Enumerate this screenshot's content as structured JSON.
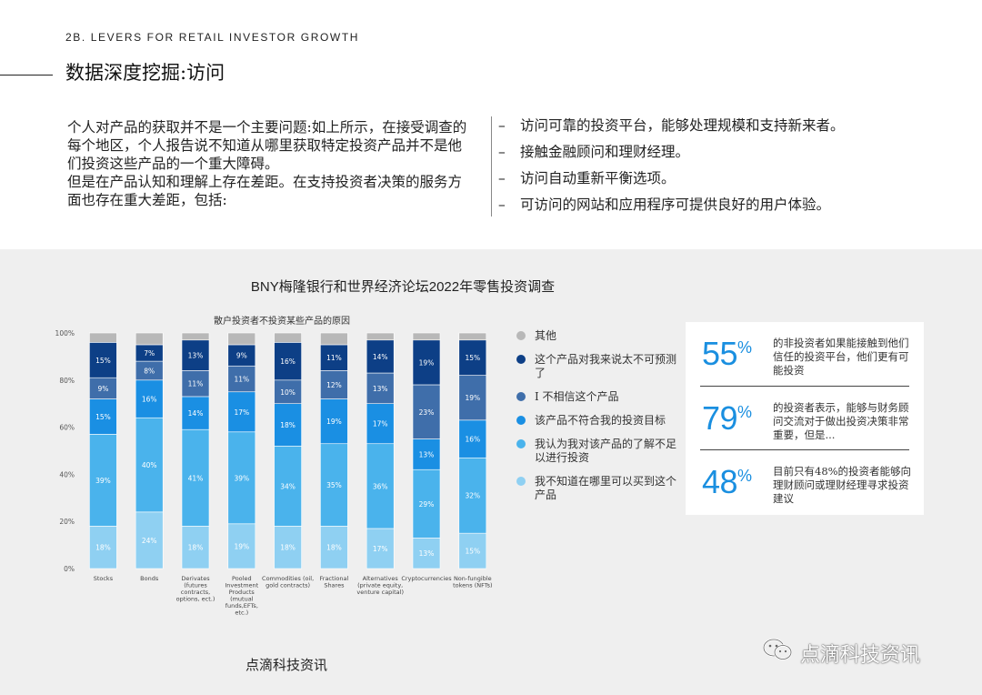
{
  "header": {
    "section_label": "2B. LEVERS FOR RETAIL INVESTOR GROWTH",
    "title": "数据深度挖掘:访问"
  },
  "intro": {
    "paragraph1": "个人对产品的获取并不是一个主要问题:如上所示，在接受调查的每个地区，个人报告说不知道从哪里获取特定投资产品并不是他们投资这些产品的一个重大障碍。",
    "paragraph2": "但是在产品认知和理解上存在差距。在支持投资者决策的服务方面也存在重大差距，包括:"
  },
  "bullets": {
    "dash": "–",
    "items": [
      "访问可靠的投资平台，能够处理规模和支持新来者。",
      "接触金融顾问和理财经理。",
      "访问自动重新平衡选项。",
      "可访问的网站和应用程序可提供良好的用户体验。"
    ]
  },
  "chart_data": {
    "type": "bar",
    "stacked": true,
    "title": "BNY梅隆银行和世界经济论坛2022年零售投资调查",
    "subtitle": "散户投资者不投资某些产品的原因",
    "y_ticks": [
      "0%",
      "20%",
      "40%",
      "60%",
      "80%",
      "100%"
    ],
    "ylim": [
      0,
      100
    ],
    "grid": false,
    "legend_position": "right",
    "categories": [
      "Stocks",
      "Bonds",
      "Derivates (futures contracts, options, ect.)",
      "Pooled Investment Products (mutual funds,EFTs, etc.)",
      "Commodities (oil, gold contracts)",
      "Fractional Shares",
      "Alternatives (private equity, venture capital)",
      "Cryptocurrencies",
      "Non-fungible tokens (NFTs)"
    ],
    "category_lines": [
      [
        "Stocks"
      ],
      [
        "Bonds"
      ],
      [
        "Derivates",
        "(futures",
        "contracts,",
        "options, ect.)"
      ],
      [
        "Pooled",
        "Investment",
        "Products",
        "(mutual",
        "funds,EFTs,",
        "etc.)"
      ],
      [
        "Commodities (oil,",
        "gold contracts)"
      ],
      [
        "Fractional",
        "Shares"
      ],
      [
        "Alternatives",
        "(private equity,",
        "venture capital)"
      ],
      [
        "Cryptocurrencies"
      ],
      [
        "Non-fungible",
        "tokens (NFTs)"
      ]
    ],
    "series": [
      {
        "name": "我不知道在哪里可以买到这个产品",
        "color": "#8fd0f2",
        "values": [
          18,
          24,
          18,
          19,
          18,
          18,
          17,
          13,
          15
        ],
        "labels": [
          "18%",
          "24%",
          "18%",
          "19%",
          "18%",
          "18%",
          "17%",
          "13%",
          "15%"
        ]
      },
      {
        "name": "我认为我对该产品的了解不足以进行投资",
        "color": "#4ab3ec",
        "values": [
          39,
          40,
          41,
          39,
          34,
          35,
          36,
          29,
          32
        ],
        "labels": [
          "39%",
          "40%",
          "41%",
          "39%",
          "34%",
          "35%",
          "36%",
          "29%",
          "32%"
        ]
      },
      {
        "name": "该产品不符合我的投资目标",
        "color": "#1a8fe3",
        "values": [
          15,
          16,
          14,
          17,
          18,
          19,
          17,
          13,
          16
        ],
        "labels": [
          "15%",
          "16%",
          "14%",
          "17%",
          "18%",
          "19%",
          "17%",
          "13%",
          "16%"
        ]
      },
      {
        "name": "I 不相信这个产品",
        "color": "#3f6eaa",
        "values": [
          9,
          8,
          11,
          11,
          10,
          12,
          13,
          23,
          19
        ],
        "labels": [
          "9%",
          "8%",
          "11%",
          "11%",
          "10%",
          "12%",
          "13%",
          "23%",
          "19%"
        ]
      },
      {
        "name": "这个产品对我来说太不可预测了",
        "color": "#0d3f86",
        "values": [
          15,
          7,
          13,
          9,
          16,
          11,
          14,
          19,
          15
        ],
        "labels": [
          "15%",
          "7%",
          "13%",
          "9%",
          "16%",
          "11%",
          "14%",
          "19%",
          "15%"
        ]
      },
      {
        "name": "其他",
        "color": "#b8b8b8",
        "values": [
          4,
          5,
          3,
          5,
          4,
          5,
          3,
          3,
          3
        ],
        "labels": [
          "",
          "",
          "",
          "",
          "",
          "",
          "",
          "",
          ""
        ]
      }
    ]
  },
  "legend": [
    {
      "label": "其他",
      "color": "#b8b8b8"
    },
    {
      "label": "这个产品对我来说太不可预测了",
      "color": "#0d3f86"
    },
    {
      "label": "I 不相信这个产品",
      "color": "#3f6eaa"
    },
    {
      "label": "该产品不符合我的投资目标",
      "color": "#1a8fe3"
    },
    {
      "label": "我认为我对该产品的了解不足以进行投资",
      "color": "#4ab3ec"
    },
    {
      "label": "我不知道在哪里可以买到这个产品",
      "color": "#8fd0f2"
    }
  ],
  "stats": [
    {
      "number": "55",
      "unit": "%",
      "text": "的非投资者如果能接触到他们信任的投资平台，他们更有可能投资"
    },
    {
      "number": "79",
      "unit": "%",
      "text": "的投资者表示，能够与财务顾问交流对于做出投资决策非常重要，但是..."
    },
    {
      "number": "48",
      "unit": "%",
      "text": "目前只有48%的投资者能够向理财顾问或理财经理寻求投资建议"
    }
  ],
  "footer": {
    "brand": "点滴科技资讯",
    "watermark": "点滴科技资讯"
  }
}
